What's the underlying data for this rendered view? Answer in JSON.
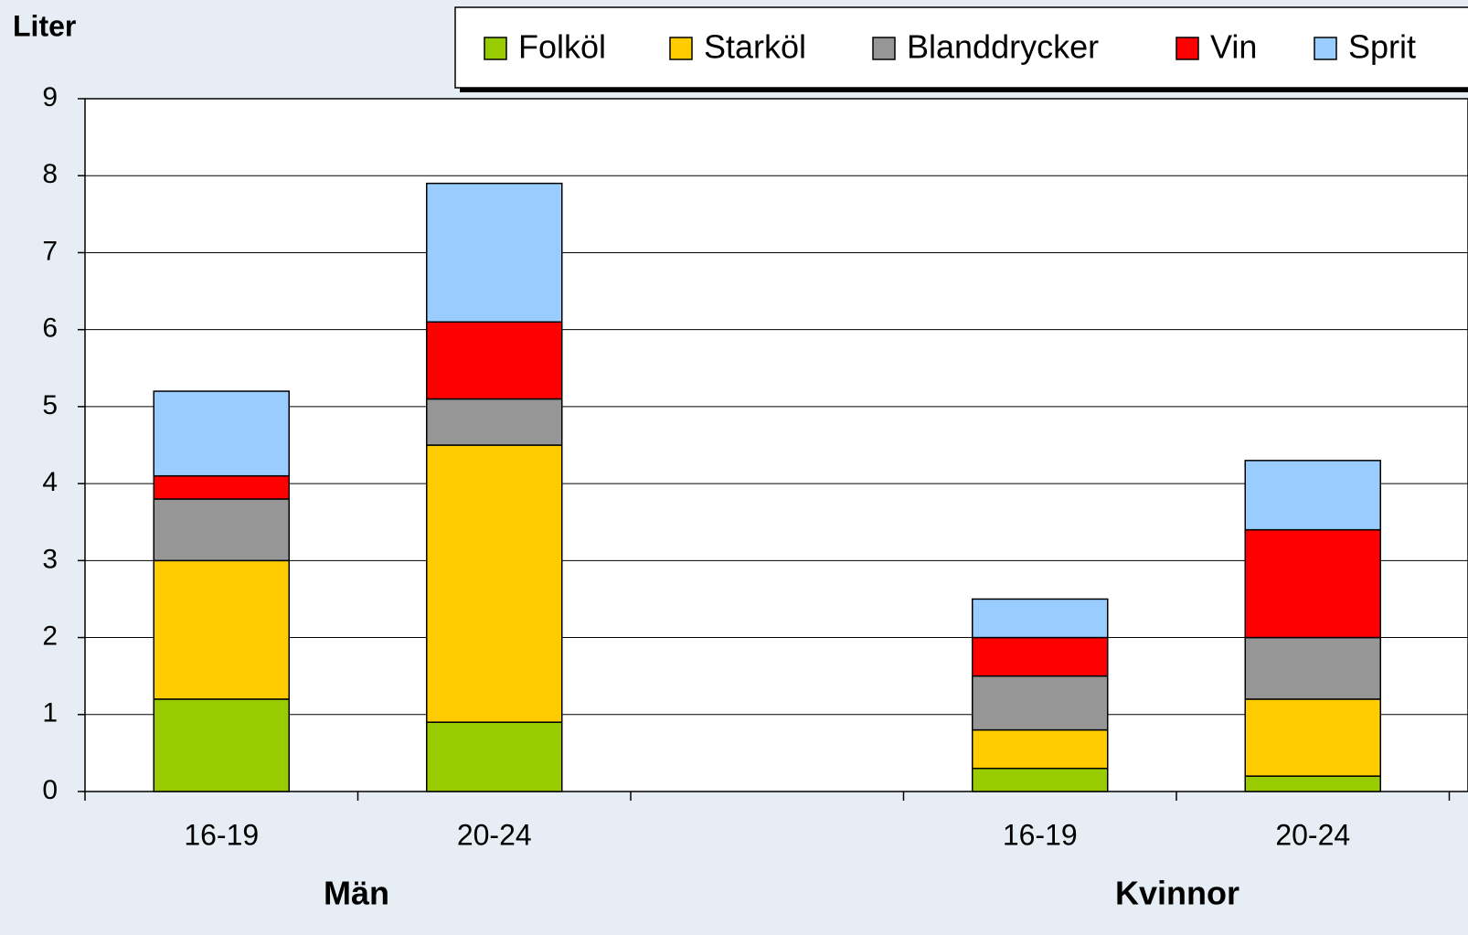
{
  "chart_data": {
    "type": "stacked_bar",
    "y_label": "Liter",
    "categories": [
      "16-19",
      "20-24",
      null,
      "16-19",
      "20-24"
    ],
    "groups": [
      "Män",
      "Kvinnor"
    ],
    "series": [
      {
        "name": "Folköl",
        "color": "#99cc00",
        "values": [
          1.2,
          0.9,
          null,
          0.3,
          0.2
        ]
      },
      {
        "name": "Starköl",
        "color": "#ffcc00",
        "values": [
          1.8,
          3.6,
          null,
          0.5,
          1.0
        ]
      },
      {
        "name": "Blanddrycker",
        "color": "#969696",
        "values": [
          0.8,
          0.6,
          null,
          0.7,
          0.8
        ]
      },
      {
        "name": "Vin",
        "color": "#ff0000",
        "values": [
          0.3,
          1.0,
          null,
          0.5,
          1.4
        ]
      },
      {
        "name": "Sprit",
        "color": "#99ccff",
        "values": [
          1.1,
          1.8,
          null,
          0.5,
          0.9
        ]
      }
    ],
    "ylim": [
      0,
      9
    ],
    "yticks": [
      0,
      1,
      2,
      3,
      4,
      5,
      6,
      7,
      8,
      9
    ],
    "grid": true
  }
}
